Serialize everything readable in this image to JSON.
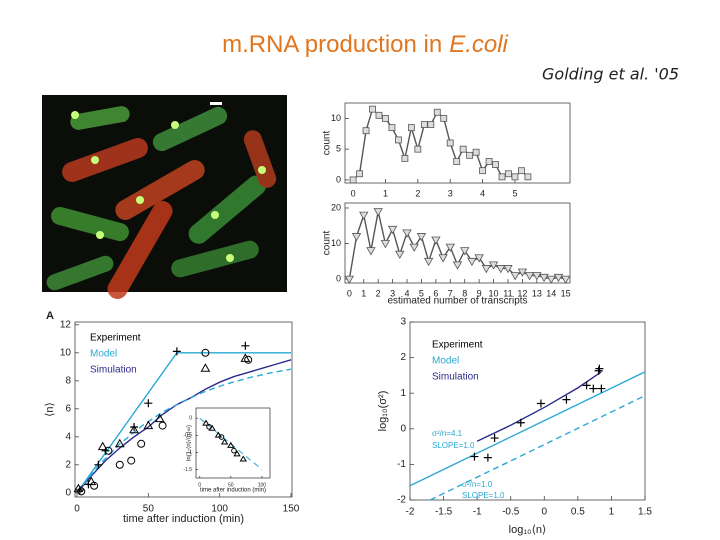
{
  "slide": {
    "title": [
      "m.RNA production in",
      "E.coli"
    ],
    "citation": "Golding et al. '05",
    "panel_label": "A"
  },
  "chart_data": [
    {
      "type": "line",
      "ylabel": "count",
      "xlim": [
        -0.25,
        6.7
      ],
      "ylim": [
        -0.5,
        12.5
      ],
      "xticks": [
        0,
        1,
        2,
        3,
        4,
        5
      ],
      "yticks": [
        0,
        5,
        10
      ],
      "series": [
        {
          "color": "#555555",
          "marker": "square",
          "line": true,
          "x": [
            0,
            0.2,
            0.4,
            0.6,
            0.8,
            1,
            1.2,
            1.4,
            1.6,
            1.8,
            2,
            2.2,
            2.4,
            2.6,
            2.8,
            3,
            3.2,
            3.4,
            3.6,
            3.8,
            4,
            4.2,
            4.4,
            4.6,
            4.8,
            5,
            5.2,
            5.4
          ],
          "values": [
            0,
            1,
            8,
            11.5,
            10.5,
            10,
            8.5,
            6.5,
            3.5,
            8.5,
            5,
            9,
            9,
            11,
            10,
            6,
            3,
            5,
            4,
            4.5,
            1.5,
            3,
            2.5,
            0.5,
            1,
            0.5,
            1.5,
            0.5
          ]
        }
      ]
    },
    {
      "type": "line",
      "ylabel": "count",
      "xlabel": "estimated number of transcripts",
      "xlim": [
        -0.3,
        15.3
      ],
      "ylim": [
        -1.1,
        21.4
      ],
      "xticks": [
        0,
        1,
        2,
        3,
        4,
        5,
        6,
        7,
        8,
        9,
        10,
        11,
        12,
        13,
        14,
        15
      ],
      "yticks": [
        0,
        10,
        20
      ],
      "series": [
        {
          "color": "#555555",
          "marker": "tri-down",
          "line": true,
          "x": [
            0,
            0.5,
            1,
            1.5,
            2,
            2.5,
            3,
            3.5,
            4,
            4.5,
            5,
            5.5,
            6,
            6.5,
            7,
            7.5,
            8,
            8.5,
            9,
            9.5,
            10,
            10.5,
            11,
            11.5,
            12,
            12.5,
            13,
            13.5,
            14,
            14.5,
            15
          ],
          "values": [
            0,
            12,
            18,
            8,
            19,
            10,
            14,
            7,
            13,
            9,
            12,
            5,
            11,
            6,
            9,
            4,
            8,
            5,
            6,
            3,
            4,
            3,
            3,
            1,
            2,
            1,
            1,
            0.5,
            0,
            0.5,
            0
          ]
        }
      ]
    },
    {
      "type": "line",
      "xlabel": "time after induction (min)",
      "ylabel": "⟨n⟩",
      "xlim": [
        -1.4,
        150.7
      ],
      "ylim": [
        -0.3,
        12.2
      ],
      "xticks": [
        0,
        50,
        100,
        150
      ],
      "yticks": [
        0,
        2,
        4,
        6,
        8,
        10,
        12
      ],
      "series": [
        {
          "name": "Experiment",
          "color": "#000000",
          "marker": "plus",
          "line": false,
          "x": [
            2,
            8,
            15,
            20,
            40,
            50,
            70,
            118
          ],
          "values": [
            0.2,
            0.6,
            2,
            3,
            4.7,
            6.4,
            10.1,
            10.5
          ]
        },
        {
          "name": "Model",
          "color": "#29a9d4",
          "line": true,
          "x": [
            0,
            70,
            150
          ],
          "values": [
            0,
            10,
            10
          ]
        },
        {
          "name": "Simulation",
          "color": "#2b2b8c",
          "line": true,
          "x": [
            0,
            10,
            20,
            30,
            40,
            50,
            60,
            70,
            80,
            90,
            100,
            110,
            120,
            130,
            140,
            150
          ],
          "values": [
            0,
            1.2,
            2.3,
            3.2,
            4,
            4.7,
            5.6,
            6.3,
            6.8,
            7.4,
            7.9,
            8.3,
            8.6,
            8.9,
            9.2,
            9.5
          ]
        },
        {
          "color": "#29a9d4",
          "line": true,
          "dashed": true,
          "x": [
            0,
            15,
            30,
            45,
            60,
            75,
            90,
            105,
            120,
            135,
            150
          ],
          "values": [
            0,
            1.93,
            3.49,
            4.74,
            5.77,
            6.57,
            7.25,
            7.78,
            8.2,
            8.55,
            8.83
          ]
        },
        {
          "color": "#000000",
          "marker": "circle",
          "line": false,
          "x": [
            3,
            12,
            22,
            30,
            38,
            45,
            60,
            90,
            120
          ],
          "values": [
            0.1,
            0.5,
            3,
            2,
            2.3,
            3.5,
            4.8,
            10,
            9.5
          ]
        },
        {
          "color": "#000000",
          "marker": "tri-up",
          "line": false,
          "x": [
            1,
            10,
            18,
            30,
            40,
            50,
            58,
            90,
            118
          ],
          "values": [
            0.3,
            0.8,
            3.3,
            3.5,
            4.5,
            4.8,
            5.3,
            8.9,
            9.6
          ]
        }
      ]
    },
    {
      "type": "line",
      "xlabel": "time after induction (min)",
      "ylabel": "ln(1-⟨n⟩/⟨n⟩∞)",
      "xlim": [
        -6,
        113
      ],
      "ylim": [
        -1.75,
        0.3
      ],
      "xticks": [
        0,
        50,
        100
      ],
      "yticks": [
        0,
        -0.5,
        -1,
        -1.5
      ],
      "series": [
        {
          "color": "#29a9d4",
          "line": true,
          "dashed": true,
          "x": [
            0,
            100
          ],
          "values": [
            0,
            -1.5
          ]
        },
        {
          "color": "#000000",
          "marker": "tri-up",
          "line": false,
          "x": [
            10,
            20,
            30,
            40,
            50,
            60,
            70
          ],
          "values": [
            -0.15,
            -0.3,
            -0.5,
            -0.7,
            -0.8,
            -1.05,
            -1.2
          ]
        },
        {
          "color": "#000000",
          "marker": "circle",
          "line": false,
          "x": [
            15,
            35,
            55
          ],
          "values": [
            -0.25,
            -0.55,
            -0.95
          ]
        }
      ]
    },
    {
      "type": "line",
      "xlabel": "log₁₀⟨n⟩",
      "ylabel": "log₁₀(σ²)",
      "xlim": [
        -2,
        1.5
      ],
      "ylim": [
        -2,
        3
      ],
      "xticks": [
        -2,
        -1.5,
        -1,
        -0.5,
        0,
        0.5,
        1,
        1.5
      ],
      "yticks": [
        -2,
        -1,
        0,
        1,
        2,
        3
      ],
      "series": [
        {
          "name": "Experiment",
          "color": "#000000",
          "marker": "plus",
          "line": false,
          "x": [
            -1.04,
            -0.84,
            -0.74,
            -0.35,
            -0.05,
            0.33,
            0.63,
            0.73,
            0.81,
            0.85,
            0.82
          ],
          "values": [
            -0.78,
            -0.81,
            -0.26,
            0.17,
            0.71,
            0.82,
            1.22,
            1.13,
            1.63,
            1.13,
            1.69
          ]
        },
        {
          "name": "Model",
          "color": "#29a9d4",
          "line": true,
          "x": [
            -2,
            1.5
          ],
          "values": [
            -1.6,
            1.6
          ]
        },
        {
          "name": "Simulation",
          "color": "#2b2b8c",
          "line": true,
          "x": [
            -1,
            -0.5,
            0,
            0.5,
            0.85
          ],
          "values": [
            -0.35,
            0.1,
            0.6,
            1.15,
            1.6
          ]
        },
        {
          "color": "#29a9d4",
          "line": true,
          "dashed": true,
          "x": [
            -1.7,
            1.5
          ],
          "values": [
            -2,
            0.93
          ]
        }
      ],
      "annotations": [
        "σ²/n=4.1",
        "SLOPE=1.0",
        "σ²/n=1.0",
        "SLOPE=1.0"
      ]
    }
  ]
}
